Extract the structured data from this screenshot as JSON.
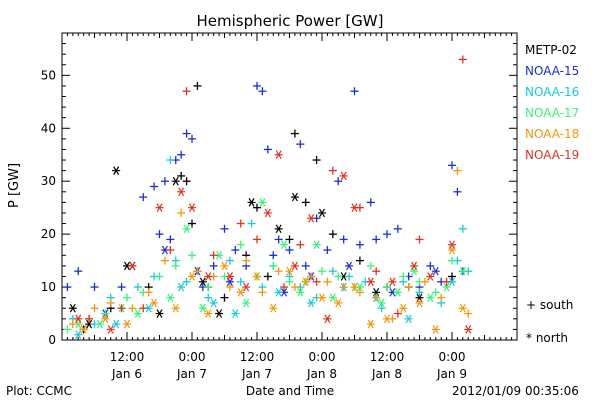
{
  "chart_data": {
    "type": "scatter",
    "title": "Hemispheric Power [GW]",
    "xlabel": "Date and Time",
    "ylabel": "P [GW]",
    "ylim": [
      0,
      58
    ],
    "yticks": [
      0,
      10,
      20,
      30,
      40,
      50
    ],
    "xlim_hours": [
      0,
      84
    ],
    "xticks": [
      {
        "hour": 12,
        "time": "12:00",
        "date": "Jan 6"
      },
      {
        "hour": 24,
        "time": "0:00",
        "date": "Jan 7"
      },
      {
        "hour": 36,
        "time": "12:00",
        "date": "Jan 7"
      },
      {
        "hour": 48,
        "time": "0:00",
        "date": "Jan 8"
      },
      {
        "hour": 60,
        "time": "12:00",
        "date": "Jan 8"
      },
      {
        "hour": 72,
        "time": "0:00",
        "date": "Jan 9"
      }
    ],
    "marker_key": [
      {
        "symbol": "+",
        "label": "south"
      },
      {
        "symbol": "*",
        "label": "north"
      }
    ],
    "series": [
      {
        "name": "METP-02",
        "color": "#000000",
        "south": [
          [
            4,
            2
          ],
          [
            9,
            6
          ],
          [
            16,
            10
          ],
          [
            22,
            31
          ],
          [
            23,
            30
          ],
          [
            24,
            22
          ],
          [
            25,
            48
          ],
          [
            27,
            10
          ],
          [
            30,
            8
          ],
          [
            34,
            16
          ],
          [
            36,
            25
          ],
          [
            38,
            12
          ],
          [
            42,
            19
          ],
          [
            43,
            39
          ],
          [
            45,
            26
          ],
          [
            47,
            34
          ],
          [
            50,
            20
          ],
          [
            55,
            15
          ],
          [
            60,
            10
          ],
          [
            64,
            10
          ],
          [
            72,
            12
          ]
        ],
        "north": [
          [
            2,
            6
          ],
          [
            5,
            3
          ],
          [
            10,
            32
          ],
          [
            12,
            14
          ],
          [
            18,
            5
          ],
          [
            21,
            30
          ],
          [
            26,
            11
          ],
          [
            29,
            5
          ],
          [
            35,
            26
          ],
          [
            40,
            21
          ],
          [
            43,
            27
          ],
          [
            48,
            24
          ],
          [
            52,
            12
          ],
          [
            58,
            9
          ],
          [
            66,
            8
          ]
        ]
      },
      {
        "name": "NOAA-15",
        "color": "#1a2ed6",
        "south": [
          [
            1,
            10
          ],
          [
            3,
            13
          ],
          [
            6,
            10
          ],
          [
            11,
            10
          ],
          [
            15,
            27
          ],
          [
            17,
            29
          ],
          [
            18,
            20
          ],
          [
            19,
            30
          ],
          [
            20,
            19
          ],
          [
            21,
            34
          ],
          [
            22,
            35
          ],
          [
            23,
            39
          ],
          [
            24,
            38
          ],
          [
            26,
            10
          ],
          [
            28,
            14
          ],
          [
            30,
            21
          ],
          [
            32,
            17
          ],
          [
            34,
            14
          ],
          [
            36,
            48
          ],
          [
            37,
            47
          ],
          [
            38,
            36
          ],
          [
            39,
            16
          ],
          [
            40,
            19
          ],
          [
            42,
            17
          ],
          [
            44,
            37
          ],
          [
            45,
            14
          ],
          [
            47,
            23
          ],
          [
            49,
            17
          ],
          [
            51,
            30
          ],
          [
            52,
            19
          ],
          [
            54,
            47
          ],
          [
            55,
            18
          ],
          [
            57,
            26
          ],
          [
            58,
            19
          ],
          [
            60,
            20
          ],
          [
            62,
            21
          ],
          [
            64,
            12
          ],
          [
            66,
            10
          ],
          [
            68,
            14
          ],
          [
            70,
            11
          ],
          [
            72,
            33
          ],
          [
            73,
            28
          ],
          [
            74,
            13
          ]
        ],
        "north": [
          [
            8,
            5
          ],
          [
            13,
            14
          ],
          [
            19,
            17
          ],
          [
            25,
            13
          ],
          [
            31,
            11
          ],
          [
            41,
            9
          ],
          [
            46,
            12
          ],
          [
            53,
            14
          ],
          [
            61,
            9
          ],
          [
            69,
            13
          ]
        ]
      },
      {
        "name": "NOAA-16",
        "color": "#18c8dc",
        "south": [
          [
            2,
            4
          ],
          [
            6,
            3
          ],
          [
            9,
            8
          ],
          [
            14,
            10
          ],
          [
            17,
            12
          ],
          [
            20,
            34
          ],
          [
            21,
            15
          ],
          [
            23,
            11
          ],
          [
            25,
            13
          ],
          [
            27,
            8
          ],
          [
            31,
            15
          ],
          [
            33,
            11
          ],
          [
            35,
            22
          ],
          [
            37,
            10
          ],
          [
            39,
            14
          ],
          [
            42,
            12
          ],
          [
            44,
            10
          ],
          [
            47,
            8
          ],
          [
            50,
            13
          ],
          [
            53,
            12
          ],
          [
            56,
            11
          ],
          [
            59,
            6
          ],
          [
            63,
            11
          ],
          [
            66,
            9
          ],
          [
            70,
            7
          ],
          [
            73,
            15
          ],
          [
            74,
            21
          ],
          [
            75,
            13
          ]
        ],
        "north": [
          [
            3,
            1
          ],
          [
            10,
            3
          ],
          [
            16,
            6
          ],
          [
            22,
            10
          ],
          [
            28,
            7
          ],
          [
            32,
            5
          ],
          [
            40,
            9
          ],
          [
            46,
            7
          ],
          [
            52,
            10
          ],
          [
            58,
            8
          ],
          [
            64,
            4
          ],
          [
            72,
            11
          ]
        ]
      },
      {
        "name": "NOAA-17",
        "color": "#3cf07a",
        "south": [
          [
            1,
            2
          ],
          [
            5,
            4
          ],
          [
            8,
            5
          ],
          [
            12,
            8
          ],
          [
            15,
            9
          ],
          [
            18,
            12
          ],
          [
            21,
            14
          ],
          [
            24,
            16
          ],
          [
            27,
            10
          ],
          [
            30,
            12
          ],
          [
            33,
            18
          ],
          [
            36,
            12
          ],
          [
            39,
            14
          ],
          [
            42,
            11
          ],
          [
            45,
            11
          ],
          [
            48,
            13
          ],
          [
            51,
            12
          ],
          [
            54,
            10
          ],
          [
            57,
            14
          ],
          [
            60,
            10
          ],
          [
            63,
            12
          ],
          [
            66,
            11
          ],
          [
            69,
            9
          ],
          [
            72,
            15
          ]
        ],
        "north": [
          [
            3,
            3
          ],
          [
            7,
            3
          ],
          [
            11,
            6
          ],
          [
            14,
            5
          ],
          [
            20,
            8
          ],
          [
            23,
            21
          ],
          [
            26,
            6
          ],
          [
            29,
            16
          ],
          [
            34,
            7
          ],
          [
            37,
            26
          ],
          [
            41,
            18
          ],
          [
            44,
            9
          ],
          [
            47,
            18
          ],
          [
            50,
            8
          ],
          [
            55,
            10
          ],
          [
            59,
            7
          ],
          [
            62,
            9
          ],
          [
            65,
            13
          ],
          [
            68,
            8
          ],
          [
            71,
            10
          ],
          [
            74,
            13
          ]
        ]
      },
      {
        "name": "NOAA-18",
        "color": "#f5960a",
        "south": [
          [
            2,
            3
          ],
          [
            6,
            6
          ],
          [
            9,
            7
          ],
          [
            13,
            6
          ],
          [
            16,
            9
          ],
          [
            19,
            15
          ],
          [
            22,
            24
          ],
          [
            25,
            13
          ],
          [
            28,
            12
          ],
          [
            31,
            10
          ],
          [
            34,
            15
          ],
          [
            37,
            9
          ],
          [
            40,
            13
          ],
          [
            43,
            10
          ],
          [
            46,
            12
          ],
          [
            49,
            11
          ],
          [
            52,
            10
          ],
          [
            55,
            9
          ],
          [
            58,
            8
          ],
          [
            61,
            4
          ],
          [
            64,
            10
          ],
          [
            67,
            11
          ],
          [
            70,
            8
          ],
          [
            73,
            32
          ],
          [
            75,
            5
          ]
        ],
        "north": [
          [
            4,
            2
          ],
          [
            8,
            4
          ],
          [
            12,
            3
          ],
          [
            17,
            7
          ],
          [
            21,
            6
          ],
          [
            24,
            12
          ],
          [
            27,
            5
          ],
          [
            30,
            14
          ],
          [
            33,
            9
          ],
          [
            36,
            12
          ],
          [
            39,
            6
          ],
          [
            42,
            13
          ],
          [
            45,
            11
          ],
          [
            48,
            8
          ],
          [
            51,
            7
          ],
          [
            54,
            10
          ],
          [
            57,
            3
          ],
          [
            60,
            4
          ],
          [
            63,
            6
          ],
          [
            66,
            7
          ],
          [
            69,
            2
          ],
          [
            72,
            17
          ],
          [
            74,
            6
          ]
        ]
      },
      {
        "name": "NOAA-19",
        "color": "#e0321c",
        "south": [
          [
            5,
            4
          ],
          [
            11,
            6
          ],
          [
            15,
            6
          ],
          [
            20,
            17
          ],
          [
            23,
            47
          ],
          [
            28,
            16
          ],
          [
            33,
            22
          ],
          [
            36,
            19
          ],
          [
            41,
            10
          ],
          [
            44,
            18
          ],
          [
            47,
            11
          ],
          [
            50,
            32
          ],
          [
            55,
            25
          ],
          [
            58,
            13
          ],
          [
            62,
            5
          ],
          [
            66,
            19
          ],
          [
            71,
            11
          ],
          [
            74,
            53
          ]
        ],
        "north": [
          [
            3,
            4
          ],
          [
            9,
            2
          ],
          [
            13,
            14
          ],
          [
            18,
            25
          ],
          [
            22,
            28
          ],
          [
            24,
            25
          ],
          [
            27,
            12
          ],
          [
            31,
            12
          ],
          [
            34,
            10
          ],
          [
            38,
            24
          ],
          [
            40,
            35
          ],
          [
            43,
            14
          ],
          [
            46,
            23
          ],
          [
            49,
            4
          ],
          [
            52,
            31
          ],
          [
            54,
            25
          ],
          [
            57,
            11
          ],
          [
            61,
            11
          ],
          [
            65,
            14
          ],
          [
            68,
            12
          ],
          [
            72,
            18
          ],
          [
            75,
            2
          ]
        ]
      }
    ]
  },
  "footer": {
    "source": "Plot: CCMC",
    "timestamp": "2012/01/09 00:35:06"
  }
}
